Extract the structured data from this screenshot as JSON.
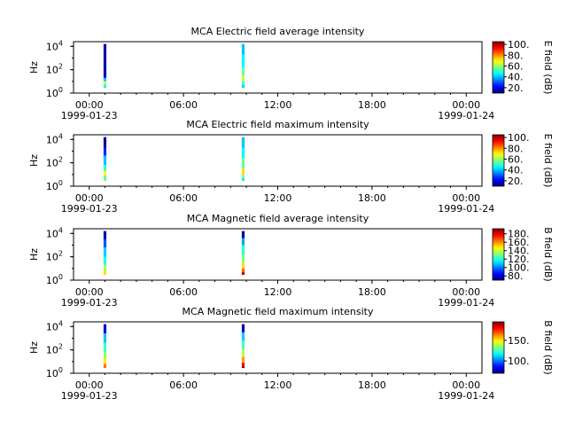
{
  "chart_data": [
    {
      "type": "heatmap",
      "title": "MCA  Electric field average intensity",
      "ylabel": "Hz",
      "colorbar_label": "E field (dB)",
      "colorbar_ticks": [
        "20.",
        "40.",
        "60.",
        "80.",
        "100."
      ],
      "colorbar_range": [
        10,
        105
      ],
      "x_ticks": [
        {
          "time": "00:00",
          "date": "1999-01-23"
        },
        {
          "time": "06:00",
          "date": ""
        },
        {
          "time": "12:00",
          "date": ""
        },
        {
          "time": "18:00",
          "date": ""
        },
        {
          "time": "00:00",
          "date": "1999-01-24"
        }
      ],
      "xlim_hours": [
        -1,
        25
      ],
      "y_ticks": [
        "10^0",
        "10^2",
        "10^4"
      ],
      "ylim_log10": [
        0,
        4.4
      ],
      "columns": [
        {
          "t_hours": 1.0,
          "bands": [
            {
              "f_lo": 1.3,
              "f_hi": 4.2,
              "db": 15
            },
            {
              "f_lo": 1.0,
              "f_hi": 1.3,
              "db": 40
            },
            {
              "f_lo": 0.85,
              "f_hi": 1.0,
              "db": 70
            },
            {
              "f_lo": 0.6,
              "f_hi": 0.85,
              "db": 55
            },
            {
              "f_lo": 0.45,
              "f_hi": 0.6,
              "db": 45
            }
          ]
        },
        {
          "t_hours": 9.8,
          "bands": [
            {
              "f_lo": 3.3,
              "f_hi": 4.2,
              "db": 40
            },
            {
              "f_lo": 2.2,
              "f_hi": 3.3,
              "db": 45
            },
            {
              "f_lo": 1.5,
              "f_hi": 2.2,
              "db": 55
            },
            {
              "f_lo": 1.0,
              "f_hi": 1.5,
              "db": 65
            },
            {
              "f_lo": 0.7,
              "f_hi": 1.0,
              "db": 50
            },
            {
              "f_lo": 0.45,
              "f_hi": 0.7,
              "db": 42
            }
          ]
        }
      ]
    },
    {
      "type": "heatmap",
      "title": "MCA  Electric field maximum intensity",
      "ylabel": "Hz",
      "colorbar_label": "E field (dB)",
      "colorbar_ticks": [
        "20.",
        "40.",
        "60.",
        "80.",
        "100."
      ],
      "colorbar_range": [
        10,
        105
      ],
      "x_ticks": [
        {
          "time": "00:00",
          "date": "1999-01-23"
        },
        {
          "time": "06:00",
          "date": ""
        },
        {
          "time": "12:00",
          "date": ""
        },
        {
          "time": "18:00",
          "date": ""
        },
        {
          "time": "00:00",
          "date": "1999-01-24"
        }
      ],
      "xlim_hours": [
        -1,
        25
      ],
      "y_ticks": [
        "10^0",
        "10^2",
        "10^4"
      ],
      "ylim_log10": [
        0,
        4.4
      ],
      "columns": [
        {
          "t_hours": 1.0,
          "bands": [
            {
              "f_lo": 3.3,
              "f_hi": 4.2,
              "db": 12
            },
            {
              "f_lo": 2.6,
              "f_hi": 3.3,
              "db": 25
            },
            {
              "f_lo": 1.8,
              "f_hi": 2.6,
              "db": 40
            },
            {
              "f_lo": 1.3,
              "f_hi": 1.8,
              "db": 50
            },
            {
              "f_lo": 0.9,
              "f_hi": 1.3,
              "db": 70
            },
            {
              "f_lo": 0.45,
              "f_hi": 0.9,
              "db": 55
            }
          ]
        },
        {
          "t_hours": 9.8,
          "bands": [
            {
              "f_lo": 3.3,
              "f_hi": 4.2,
              "db": 40
            },
            {
              "f_lo": 2.4,
              "f_hi": 3.3,
              "db": 45
            },
            {
              "f_lo": 1.5,
              "f_hi": 2.4,
              "db": 55
            },
            {
              "f_lo": 1.0,
              "f_hi": 1.5,
              "db": 72
            },
            {
              "f_lo": 0.7,
              "f_hi": 1.0,
              "db": 58
            },
            {
              "f_lo": 0.45,
              "f_hi": 0.7,
              "db": 45
            }
          ]
        }
      ]
    },
    {
      "type": "heatmap",
      "title": "MCA  Magnetic field average intensity",
      "ylabel": "Hz",
      "colorbar_label": "B field (dB)",
      "colorbar_ticks": [
        "80.",
        "100.",
        "120.",
        "140.",
        "160.",
        "180."
      ],
      "colorbar_range": [
        70,
        192
      ],
      "x_ticks": [
        {
          "time": "00:00",
          "date": "1999-01-23"
        },
        {
          "time": "06:00",
          "date": ""
        },
        {
          "time": "12:00",
          "date": ""
        },
        {
          "time": "18:00",
          "date": ""
        },
        {
          "time": "00:00",
          "date": "1999-01-24"
        }
      ],
      "xlim_hours": [
        -1,
        25
      ],
      "y_ticks": [
        "10^0",
        "10^2",
        "10^4"
      ],
      "ylim_log10": [
        0,
        4.4
      ],
      "columns": [
        {
          "t_hours": 1.0,
          "bands": [
            {
              "f_lo": 3.5,
              "f_hi": 4.2,
              "db": 75
            },
            {
              "f_lo": 2.8,
              "f_hi": 3.5,
              "db": 95
            },
            {
              "f_lo": 2.0,
              "f_hi": 2.8,
              "db": 110
            },
            {
              "f_lo": 1.3,
              "f_hi": 2.0,
              "db": 120
            },
            {
              "f_lo": 0.8,
              "f_hi": 1.3,
              "db": 135
            },
            {
              "f_lo": 0.45,
              "f_hi": 0.8,
              "db": 150
            }
          ]
        },
        {
          "t_hours": 9.8,
          "bands": [
            {
              "f_lo": 3.6,
              "f_hi": 4.2,
              "db": 72
            },
            {
              "f_lo": 3.0,
              "f_hi": 3.6,
              "db": 105
            },
            {
              "f_lo": 2.2,
              "f_hi": 3.0,
              "db": 120
            },
            {
              "f_lo": 1.5,
              "f_hi": 2.2,
              "db": 130
            },
            {
              "f_lo": 1.0,
              "f_hi": 1.5,
              "db": 150
            },
            {
              "f_lo": 0.7,
              "f_hi": 1.0,
              "db": 165
            },
            {
              "f_lo": 0.45,
              "f_hi": 0.7,
              "db": 185
            }
          ]
        }
      ]
    },
    {
      "type": "heatmap",
      "title": "MCA  Magnetic field maximum intensity",
      "ylabel": "Hz",
      "colorbar_label": "B field (dB)",
      "colorbar_ticks": [
        "100.",
        "150."
      ],
      "colorbar_range": [
        70,
        195
      ],
      "x_ticks": [
        {
          "time": "00:00",
          "date": "1999-01-23"
        },
        {
          "time": "06:00",
          "date": ""
        },
        {
          "time": "12:00",
          "date": ""
        },
        {
          "time": "18:00",
          "date": ""
        },
        {
          "time": "00:00",
          "date": "1999-01-24"
        }
      ],
      "xlim_hours": [
        -1,
        25
      ],
      "y_ticks": [
        "10^0",
        "10^2",
        "10^4"
      ],
      "ylim_log10": [
        0,
        4.4
      ],
      "columns": [
        {
          "t_hours": 1.0,
          "bands": [
            {
              "f_lo": 3.4,
              "f_hi": 4.2,
              "db": 80
            },
            {
              "f_lo": 2.6,
              "f_hi": 3.4,
              "db": 110
            },
            {
              "f_lo": 1.8,
              "f_hi": 2.6,
              "db": 125
            },
            {
              "f_lo": 1.2,
              "f_hi": 1.8,
              "db": 135
            },
            {
              "f_lo": 0.8,
              "f_hi": 1.2,
              "db": 150
            },
            {
              "f_lo": 0.45,
              "f_hi": 0.8,
              "db": 165
            }
          ]
        },
        {
          "t_hours": 9.8,
          "bands": [
            {
              "f_lo": 3.5,
              "f_hi": 4.2,
              "db": 75
            },
            {
              "f_lo": 2.8,
              "f_hi": 3.5,
              "db": 110
            },
            {
              "f_lo": 2.0,
              "f_hi": 2.8,
              "db": 125
            },
            {
              "f_lo": 1.4,
              "f_hi": 2.0,
              "db": 140
            },
            {
              "f_lo": 0.9,
              "f_hi": 1.4,
              "db": 160
            },
            {
              "f_lo": 0.6,
              "f_hi": 0.9,
              "db": 180
            },
            {
              "f_lo": 0.45,
              "f_hi": 0.6,
              "db": 195
            }
          ]
        }
      ]
    }
  ]
}
